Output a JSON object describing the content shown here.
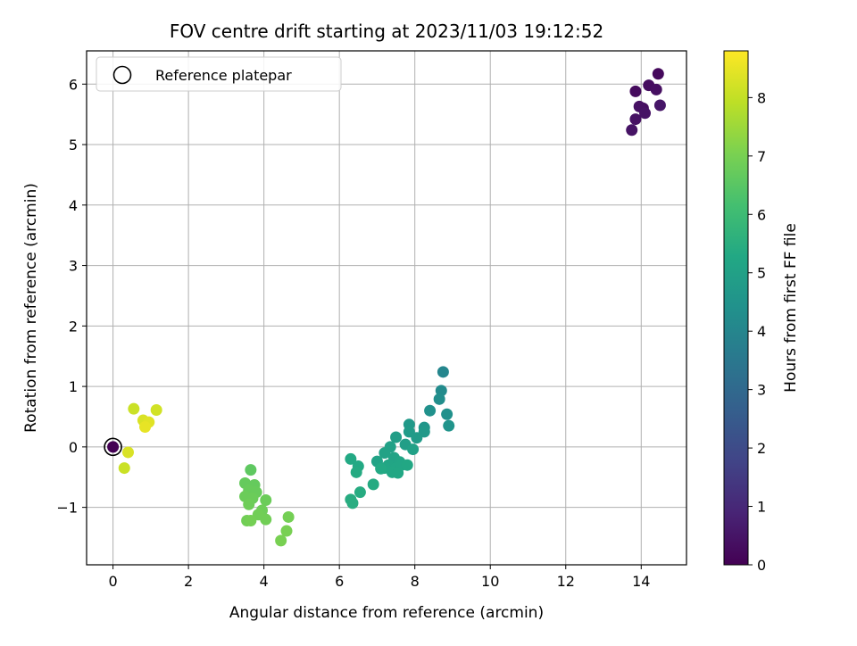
{
  "chart_data": {
    "type": "scatter",
    "title": "FOV centre drift starting at 2023/11/03 19:12:52",
    "xlabel": "Angular distance from reference (arcmin)",
    "ylabel": "Rotation from reference (arcmin)",
    "xlim": [
      -0.7,
      15.2
    ],
    "ylim": [
      -1.95,
      6.55
    ],
    "xticks": [
      0,
      2,
      4,
      6,
      8,
      10,
      12,
      14
    ],
    "yticks": [
      -1,
      0,
      1,
      2,
      3,
      4,
      5,
      6
    ],
    "xtick_labels": [
      "0",
      "2",
      "4",
      "6",
      "8",
      "10",
      "12",
      "14"
    ],
    "ytick_labels": [
      "−1",
      "0",
      "1",
      "2",
      "3",
      "4",
      "5",
      "6"
    ],
    "grid": true,
    "legend": {
      "placement": "top-left",
      "entries": [
        "Reference platepar"
      ]
    },
    "reference_point": {
      "x": 0,
      "y": 0
    },
    "colorbar": {
      "label": "Hours from first FF file",
      "min": 0,
      "max": 8.8,
      "ticks": [
        0,
        1,
        2,
        3,
        4,
        5,
        6,
        7,
        8
      ],
      "tick_labels": [
        "0",
        "1",
        "2",
        "3",
        "4",
        "5",
        "6",
        "7",
        "8"
      ],
      "colormap": "viridis"
    },
    "points": [
      {
        "x": 14.45,
        "y": 6.17,
        "t": 0.2
      },
      {
        "x": 14.2,
        "y": 5.98,
        "t": 0.3
      },
      {
        "x": 14.4,
        "y": 5.91,
        "t": 0.35
      },
      {
        "x": 13.85,
        "y": 5.88,
        "t": 0.25
      },
      {
        "x": 14.05,
        "y": 5.6,
        "t": 0.3
      },
      {
        "x": 13.95,
        "y": 5.63,
        "t": 0.4
      },
      {
        "x": 14.1,
        "y": 5.52,
        "t": 0.45
      },
      {
        "x": 14.5,
        "y": 5.65,
        "t": 0.5
      },
      {
        "x": 13.85,
        "y": 5.42,
        "t": 0.4
      },
      {
        "x": 13.75,
        "y": 5.24,
        "t": 0.45
      },
      {
        "x": 8.75,
        "y": 1.24,
        "t": 4.0
      },
      {
        "x": 8.7,
        "y": 0.93,
        "t": 4.2
      },
      {
        "x": 8.65,
        "y": 0.79,
        "t": 4.3
      },
      {
        "x": 8.4,
        "y": 0.6,
        "t": 4.4
      },
      {
        "x": 8.85,
        "y": 0.54,
        "t": 4.4
      },
      {
        "x": 8.9,
        "y": 0.35,
        "t": 4.5
      },
      {
        "x": 8.25,
        "y": 0.32,
        "t": 4.6
      },
      {
        "x": 8.25,
        "y": 0.25,
        "t": 4.7
      },
      {
        "x": 7.85,
        "y": 0.37,
        "t": 4.7
      },
      {
        "x": 7.85,
        "y": 0.25,
        "t": 4.8
      },
      {
        "x": 8.05,
        "y": 0.15,
        "t": 4.8
      },
      {
        "x": 7.5,
        "y": 0.16,
        "t": 4.9
      },
      {
        "x": 7.75,
        "y": 0.04,
        "t": 4.9
      },
      {
        "x": 7.95,
        "y": -0.04,
        "t": 5.0
      },
      {
        "x": 7.35,
        "y": 0.0,
        "t": 5.0
      },
      {
        "x": 7.2,
        "y": -0.1,
        "t": 5.05
      },
      {
        "x": 7.0,
        "y": -0.24,
        "t": 5.1
      },
      {
        "x": 7.45,
        "y": -0.18,
        "t": 5.1
      },
      {
        "x": 7.6,
        "y": -0.25,
        "t": 5.15
      },
      {
        "x": 7.3,
        "y": -0.3,
        "t": 5.15
      },
      {
        "x": 7.2,
        "y": -0.35,
        "t": 5.2
      },
      {
        "x": 7.5,
        "y": -0.35,
        "t": 5.2
      },
      {
        "x": 7.65,
        "y": -0.3,
        "t": 5.2
      },
      {
        "x": 7.8,
        "y": -0.3,
        "t": 5.25
      },
      {
        "x": 7.4,
        "y": -0.42,
        "t": 5.25
      },
      {
        "x": 7.55,
        "y": -0.43,
        "t": 5.25
      },
      {
        "x": 7.1,
        "y": -0.36,
        "t": 5.3
      },
      {
        "x": 6.3,
        "y": -0.2,
        "t": 5.3
      },
      {
        "x": 6.5,
        "y": -0.32,
        "t": 5.3
      },
      {
        "x": 6.45,
        "y": -0.42,
        "t": 5.35
      },
      {
        "x": 6.9,
        "y": -0.62,
        "t": 5.35
      },
      {
        "x": 6.55,
        "y": -0.75,
        "t": 5.4
      },
      {
        "x": 6.3,
        "y": -0.87,
        "t": 5.4
      },
      {
        "x": 6.35,
        "y": -0.93,
        "t": 5.45
      },
      {
        "x": 3.65,
        "y": -0.38,
        "t": 6.6
      },
      {
        "x": 3.5,
        "y": -0.6,
        "t": 6.7
      },
      {
        "x": 3.75,
        "y": -0.63,
        "t": 6.7
      },
      {
        "x": 3.6,
        "y": -0.72,
        "t": 6.75
      },
      {
        "x": 3.8,
        "y": -0.75,
        "t": 6.75
      },
      {
        "x": 3.5,
        "y": -0.82,
        "t": 6.8
      },
      {
        "x": 3.7,
        "y": -0.85,
        "t": 6.8
      },
      {
        "x": 4.05,
        "y": -0.88,
        "t": 6.8
      },
      {
        "x": 3.6,
        "y": -0.95,
        "t": 6.85
      },
      {
        "x": 3.95,
        "y": -1.05,
        "t": 6.85
      },
      {
        "x": 3.85,
        "y": -1.12,
        "t": 6.9
      },
      {
        "x": 4.05,
        "y": -1.2,
        "t": 6.9
      },
      {
        "x": 3.55,
        "y": -1.22,
        "t": 6.9
      },
      {
        "x": 3.65,
        "y": -1.22,
        "t": 6.95
      },
      {
        "x": 4.65,
        "y": -1.16,
        "t": 6.95
      },
      {
        "x": 4.6,
        "y": -1.39,
        "t": 7.0
      },
      {
        "x": 4.45,
        "y": -1.55,
        "t": 7.0
      },
      {
        "x": 0.55,
        "y": 0.63,
        "t": 8.1
      },
      {
        "x": 1.15,
        "y": 0.61,
        "t": 8.2
      },
      {
        "x": 0.8,
        "y": 0.44,
        "t": 8.3
      },
      {
        "x": 0.95,
        "y": 0.41,
        "t": 8.4
      },
      {
        "x": 0.85,
        "y": 0.33,
        "t": 8.5
      },
      {
        "x": 0.4,
        "y": -0.09,
        "t": 8.3
      },
      {
        "x": 0.3,
        "y": -0.35,
        "t": 8.1
      },
      {
        "x": 0.0,
        "y": 0.0,
        "t": 0.0
      }
    ]
  }
}
